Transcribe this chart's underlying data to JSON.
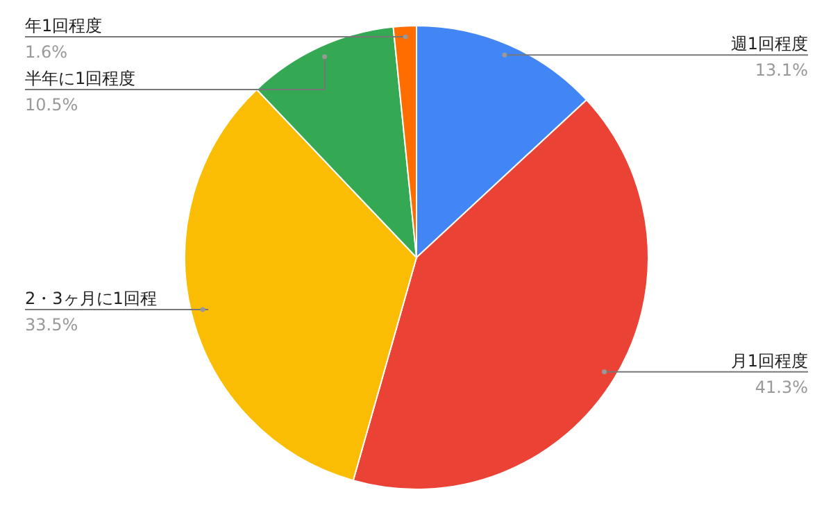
{
  "chart_data": {
    "type": "pie",
    "categories": [
      "週1回程度",
      "月1回程度",
      "2・3ヶ月に1回程",
      "半年に1回程度",
      "年1回程度"
    ],
    "values": [
      13.1,
      41.3,
      33.5,
      10.5,
      1.6
    ],
    "colors": [
      "#4285f4",
      "#ea4335",
      "#fbbc04",
      "#34a853",
      "#ff6d01"
    ],
    "value_labels": [
      "13.1%",
      "41.3%",
      "33.5%",
      "10.5%",
      "1.6%"
    ]
  }
}
